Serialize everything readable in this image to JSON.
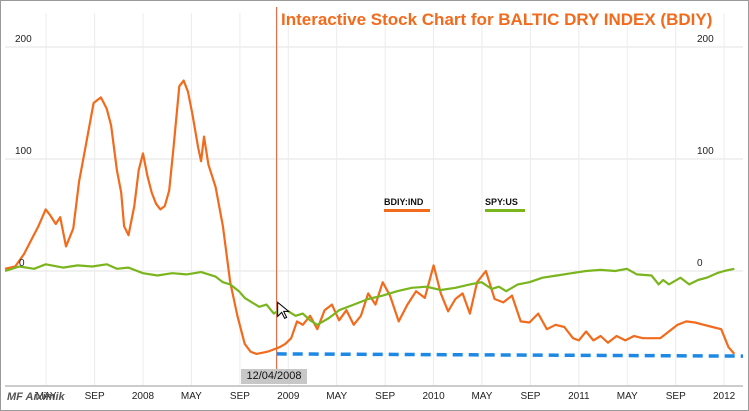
{
  "chart_data": {
    "type": "line",
    "title": "Interactive Stock Chart for BALTIC DRY INDEX (BDIY)",
    "y_ticks_left": [
      "200",
      "100",
      "0"
    ],
    "y_ticks_right": [
      "200",
      "100",
      "0"
    ],
    "ylim": [
      -85,
      225
    ],
    "x_ticks": [
      "MAY",
      "SEP",
      "2008",
      "MAY",
      "SEP",
      "2009",
      "MAY",
      "SEP",
      "2010",
      "MAY",
      "SEP",
      "2011",
      "MAY",
      "SEP",
      "2012"
    ],
    "x_tick_positions": [
      2007.333,
      2007.667,
      2008.0,
      2008.333,
      2008.667,
      2009.0,
      2009.333,
      2009.667,
      2010.0,
      2010.333,
      2010.667,
      2011.0,
      2011.333,
      2011.667,
      2012.0
    ],
    "xlim": [
      2007.05,
      2012.13
    ],
    "grid": true,
    "legend_placement": "center-right",
    "crosshair": {
      "x": 2008.92,
      "date_label": "12/04/2008"
    },
    "watermark": "MF Aiximik",
    "colors": {
      "bdiy": "#f26b1d",
      "spy": "#7ab51d",
      "dashed": "#1e88e5",
      "crosshair": "#d9542a"
    },
    "series": [
      {
        "name": "BDIY:IND",
        "x": [
          2007.05,
          2007.12,
          2007.18,
          2007.24,
          2007.28,
          2007.33,
          2007.36,
          2007.4,
          2007.43,
          2007.47,
          2007.52,
          2007.56,
          2007.61,
          2007.66,
          2007.71,
          2007.75,
          2007.78,
          2007.8,
          2007.82,
          2007.85,
          2007.87,
          2007.9,
          2007.94,
          2007.97,
          2008.0,
          2008.03,
          2008.06,
          2008.09,
          2008.12,
          2008.15,
          2008.18,
          2008.21,
          2008.25,
          2008.28,
          2008.31,
          2008.34,
          2008.36,
          2008.38,
          2008.4,
          2008.42,
          2008.45,
          2008.5,
          2008.55,
          2008.6,
          2008.65,
          2008.7,
          2008.74,
          2008.78,
          2008.82,
          2008.86,
          2008.9,
          2008.94,
          2008.98,
          2009.02,
          2009.06,
          2009.1,
          2009.15,
          2009.2,
          2009.25,
          2009.3,
          2009.35,
          2009.4,
          2009.45,
          2009.5,
          2009.55,
          2009.6,
          2009.65,
          2009.7,
          2009.76,
          2009.82,
          2009.88,
          2009.94,
          2010.0,
          2010.05,
          2010.1,
          2010.15,
          2010.2,
          2010.25,
          2010.3,
          2010.36,
          2010.42,
          2010.48,
          2010.54,
          2010.6,
          2010.66,
          2010.72,
          2010.78,
          2010.84,
          2010.9,
          2010.96,
          2011.0,
          2011.05,
          2011.1,
          2011.15,
          2011.2,
          2011.26,
          2011.32,
          2011.38,
          2011.44,
          2011.5,
          2011.56,
          2011.62,
          2011.68,
          2011.74,
          2011.8,
          2011.86,
          2011.92,
          2011.98,
          2012.03,
          2012.07
        ],
        "values": [
          2,
          4,
          15,
          30,
          40,
          55,
          50,
          42,
          48,
          22,
          38,
          80,
          115,
          150,
          155,
          145,
          130,
          110,
          90,
          70,
          40,
          32,
          58,
          90,
          105,
          85,
          70,
          60,
          55,
          58,
          72,
          110,
          165,
          170,
          160,
          140,
          125,
          110,
          98,
          120,
          95,
          75,
          40,
          -10,
          -40,
          -65,
          -72,
          -74,
          -73,
          -72,
          -70,
          -68,
          -65,
          -60,
          -45,
          -48,
          -40,
          -52,
          -35,
          -30,
          -44,
          -35,
          -48,
          -40,
          -20,
          -30,
          -10,
          -22,
          -45,
          -30,
          -18,
          -24,
          5,
          -20,
          -36,
          -25,
          -20,
          -38,
          -10,
          0,
          -25,
          -28,
          -22,
          -45,
          -46,
          -38,
          -52,
          -48,
          -50,
          -60,
          -62,
          -54,
          -62,
          -58,
          -64,
          -58,
          -62,
          -58,
          -60,
          -60,
          -60,
          -54,
          -48,
          -45,
          -46,
          -48,
          -50,
          -52,
          -68,
          -74
        ]
      },
      {
        "name": "SPY:US",
        "x": [
          2007.05,
          2007.15,
          2007.25,
          2007.33,
          2007.45,
          2007.55,
          2007.65,
          2007.75,
          2007.82,
          2007.9,
          2008.0,
          2008.1,
          2008.2,
          2008.3,
          2008.4,
          2008.5,
          2008.55,
          2008.6,
          2008.66,
          2008.7,
          2008.75,
          2008.8,
          2008.85,
          2008.9,
          2008.95,
          2009.0,
          2009.05,
          2009.1,
          2009.15,
          2009.2,
          2009.28,
          2009.35,
          2009.45,
          2009.55,
          2009.65,
          2009.75,
          2009.85,
          2009.95,
          2010.05,
          2010.15,
          2010.25,
          2010.33,
          2010.4,
          2010.45,
          2010.5,
          2010.58,
          2010.66,
          2010.75,
          2010.85,
          2010.95,
          2011.05,
          2011.15,
          2011.25,
          2011.33,
          2011.4,
          2011.5,
          2011.55,
          2011.58,
          2011.62,
          2011.66,
          2011.7,
          2011.76,
          2011.82,
          2011.88,
          2011.95,
          2012.0,
          2012.07
        ],
        "values": [
          0,
          4,
          2,
          6,
          3,
          5,
          4,
          6,
          2,
          3,
          -2,
          -4,
          -2,
          -3,
          -1,
          -5,
          -10,
          -12,
          -18,
          -24,
          -28,
          -32,
          -30,
          -38,
          -34,
          -36,
          -40,
          -38,
          -44,
          -48,
          -42,
          -35,
          -30,
          -25,
          -22,
          -18,
          -15,
          -14,
          -17,
          -15,
          -12,
          -10,
          -16,
          -14,
          -18,
          -12,
          -10,
          -6,
          -4,
          -2,
          0,
          1,
          0,
          2,
          -3,
          -4,
          -12,
          -8,
          -12,
          -9,
          -6,
          -12,
          -8,
          -6,
          -2,
          0,
          2
        ]
      },
      {
        "name": "",
        "x": [
          2008.92,
          2012.13
        ],
        "values": [
          -74,
          -76
        ]
      }
    ]
  }
}
